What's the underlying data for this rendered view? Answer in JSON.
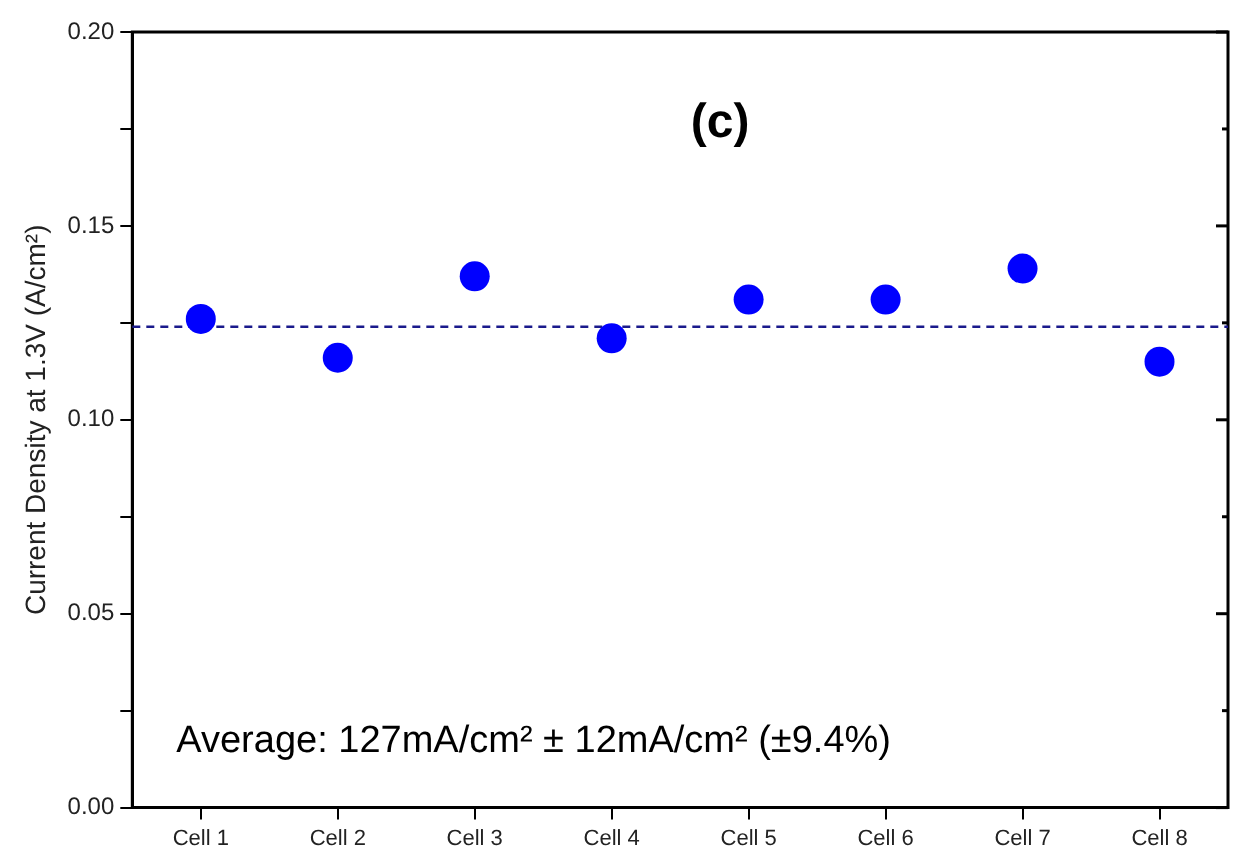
{
  "chart_data": {
    "type": "scatter",
    "title": "(c)",
    "ylabel": "Current Density at 1.3V (A/cm²)",
    "categories": [
      "Cell 1",
      "Cell 2",
      "Cell 3",
      "Cell 4",
      "Cell 5",
      "Cell 6",
      "Cell 7",
      "Cell 8"
    ],
    "series": [
      {
        "color": "#0000ff",
        "values": [
          0.126,
          0.116,
          0.137,
          0.121,
          0.131,
          0.131,
          0.139,
          0.115
        ]
      }
    ],
    "ylim": [
      0,
      0.2
    ],
    "yticks": [
      {
        "value": 0,
        "label": "0.00"
      },
      {
        "value": 0.025,
        "label": null
      },
      {
        "value": 0.05,
        "label": "0.05"
      },
      {
        "value": 0.075,
        "label": null
      },
      {
        "value": 0.1,
        "label": "0.10"
      },
      {
        "value": 0.125,
        "label": null
      },
      {
        "value": 0.15,
        "label": "0.15"
      },
      {
        "value": 0.175,
        "label": null
      },
      {
        "value": 0.2,
        "label": "0.20"
      }
    ],
    "ref_lines": [
      {
        "axis": "y",
        "value": 0.124,
        "color": "#1a1a8c",
        "line_style": "dashed"
      }
    ],
    "annotations": [
      "Average: 127mA/cm² ± 12mA/cm² (±9.4%)"
    ],
    "marker": "circle",
    "grid": false,
    "legend": false
  }
}
